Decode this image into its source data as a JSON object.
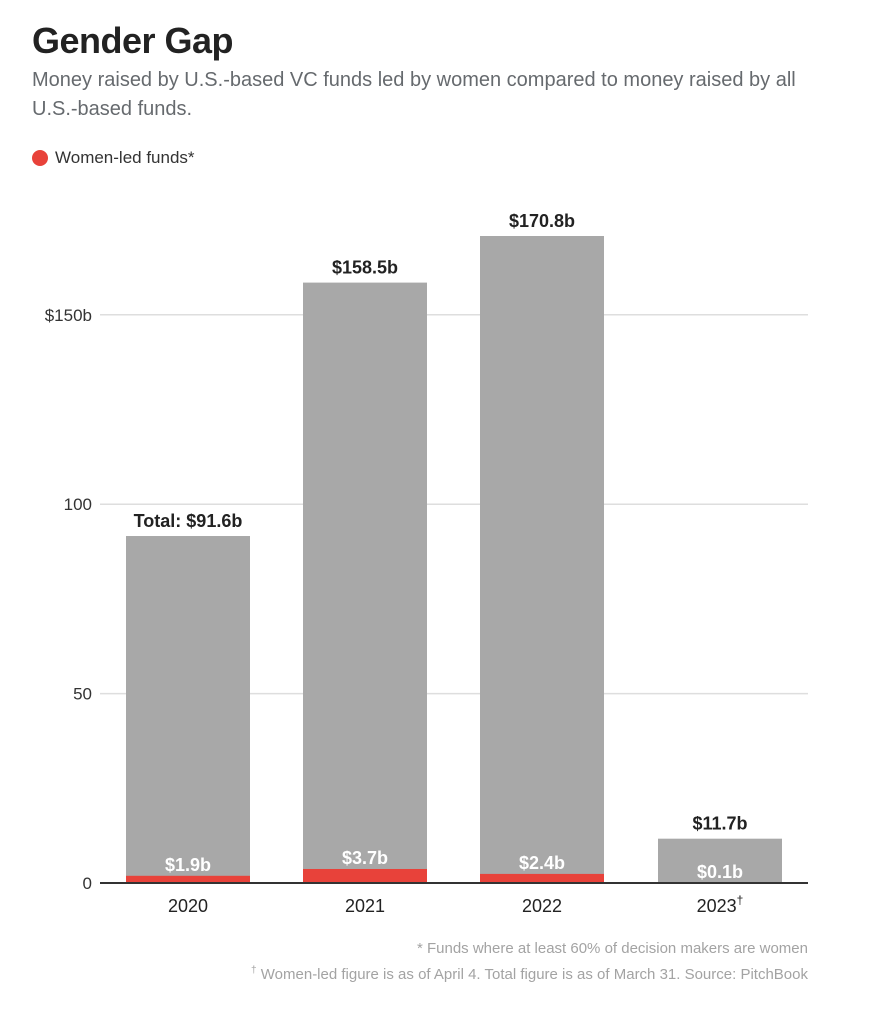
{
  "chart_data": {
    "type": "bar",
    "title": "Gender Gap",
    "subtitle": "Money raised by U.S.-based VC funds led by women compared to money raised by all U.S.-based funds.",
    "legend": [
      {
        "name": "Women-led funds*",
        "color": "#e8423a"
      }
    ],
    "categories": [
      "2020",
      "2021",
      "2022",
      "2023"
    ],
    "category_marks": [
      "",
      "",
      "",
      "†"
    ],
    "series": [
      {
        "name": "Total",
        "values": [
          91.6,
          158.5,
          170.8,
          11.7
        ],
        "color": "#a8a8a8",
        "labels": [
          "Total: $91.6b",
          "$158.5b",
          "$170.8b",
          "$11.7b"
        ]
      },
      {
        "name": "Women-led funds*",
        "values": [
          1.9,
          3.7,
          2.4,
          0.1
        ],
        "color": "#e8423a",
        "labels": [
          "$1.9b",
          "$3.7b",
          "$2.4b",
          "$0.1b"
        ]
      }
    ],
    "yticks": [
      0,
      50,
      100,
      150
    ],
    "ytick_labels": [
      "0",
      "50",
      "100",
      "$150b"
    ],
    "ylim": [
      0,
      172
    ],
    "grid": true,
    "xlabel": "",
    "ylabel": ""
  },
  "footnotes": [
    {
      "mark": "*",
      "text": "Funds where at least 60% of decision makers are women"
    },
    {
      "mark": "†",
      "text": "Women-led figure is as of April 4. Total figure is as of March 31. Source: PitchBook"
    }
  ]
}
